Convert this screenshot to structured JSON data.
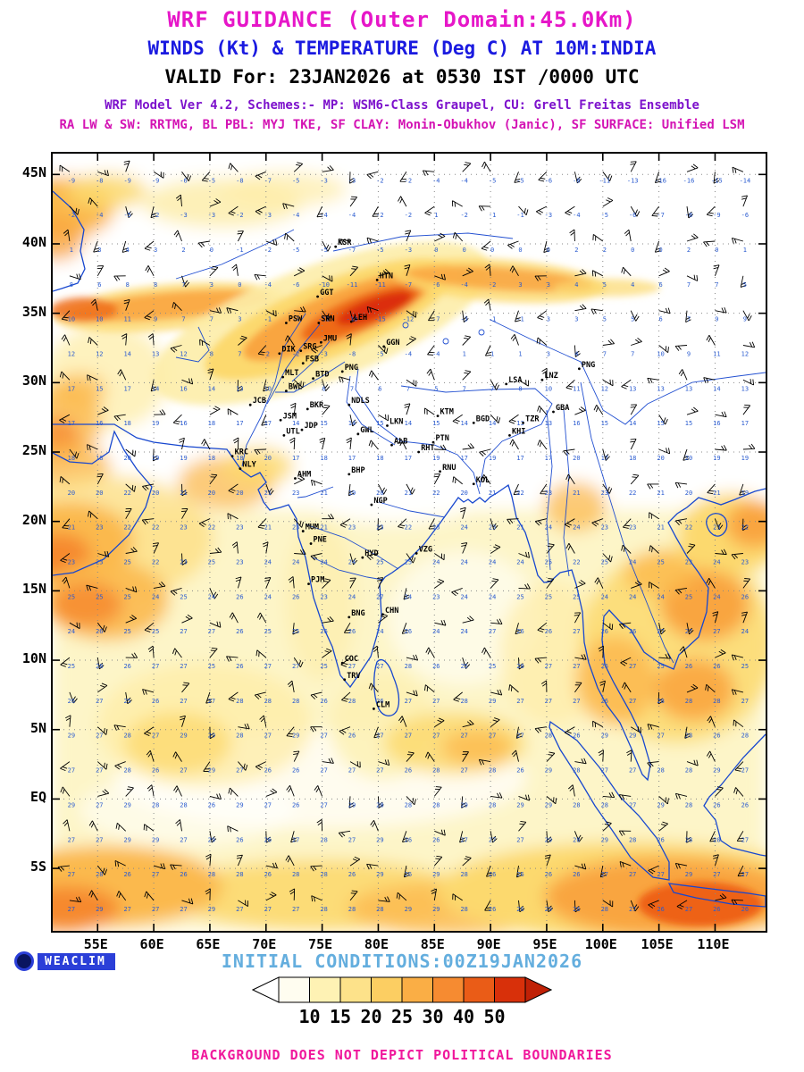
{
  "header": {
    "title1": "WRF GUIDANCE (Outer Domain:45.0Km)",
    "title2": "WINDS (Kt) & TEMPERATURE (Deg C) AT 10M:INDIA",
    "title3": "VALID For: 23JAN2026 at 0530 IST /0000 UTC",
    "scheme_line1": "WRF Model Ver 4.2, Schemes:- MP: WSM6-Class Graupel, CU: Grell Freitas Ensemble",
    "scheme_line2": "RA LW & SW: RRTMG, BL PBL: MYJ TKE, SF CLAY: Monin-Obukhov (Janic), SF SURFACE: Unified LSM"
  },
  "footer": {
    "logo_text": "WEACLIM",
    "initial_conditions": "INITIAL CONDITIONS:00Z19JAN2026",
    "disclaimer": "BACKGROUND DOES NOT DEPICT POLITICAL BOUNDARIES"
  },
  "colors": {
    "title1": "#e616c8",
    "title2": "#1a1ae0",
    "valid_line": "#000000",
    "scheme1": "#7d12cc",
    "scheme2": "#d414b4",
    "coastline": "#1747cf",
    "temp_number": "#2a5bd0",
    "wind_barb": "#000000",
    "grid_dots": "#888888",
    "initial_conditions": "#64aede",
    "disclaimer": "#f0189c",
    "logo_bg": "#2b3fd8"
  },
  "map": {
    "lon_range": [
      51,
      114.5
    ],
    "lat_range": [
      -9.5,
      46.5
    ],
    "lat_ticks": [
      {
        "label": "45N",
        "value": 45
      },
      {
        "label": "40N",
        "value": 40
      },
      {
        "label": "35N",
        "value": 35
      },
      {
        "label": "30N",
        "value": 30
      },
      {
        "label": "25N",
        "value": 25
      },
      {
        "label": "20N",
        "value": 20
      },
      {
        "label": "15N",
        "value": 15
      },
      {
        "label": "10N",
        "value": 10
      },
      {
        "label": "5N",
        "value": 5
      },
      {
        "label": "EQ",
        "value": 0
      },
      {
        "label": "5S",
        "value": -5
      }
    ],
    "lon_ticks": [
      {
        "label": "55E",
        "value": 55
      },
      {
        "label": "60E",
        "value": 60
      },
      {
        "label": "65E",
        "value": 65
      },
      {
        "label": "70E",
        "value": 70
      },
      {
        "label": "75E",
        "value": 75
      },
      {
        "label": "80E",
        "value": 80
      },
      {
        "label": "85E",
        "value": 85
      },
      {
        "label": "90E",
        "value": 90
      },
      {
        "label": "95E",
        "value": 95
      },
      {
        "label": "100E",
        "value": 100
      },
      {
        "label": "105E",
        "value": 105
      },
      {
        "label": "110E",
        "value": 110
      }
    ],
    "wind_grid": {
      "spacing_deg": 2.5,
      "lat_start": 45,
      "lat_end": -7.5,
      "lon_start": 52.5,
      "lon_end": 112.5
    }
  },
  "cities": [
    {
      "label": "KSR",
      "lon": 76.2,
      "lat": 39.8
    },
    {
      "label": "HTN",
      "lon": 79.9,
      "lat": 37.4
    },
    {
      "label": "GGT",
      "lon": 74.6,
      "lat": 36.2
    },
    {
      "label": "PSW",
      "lon": 71.8,
      "lat": 34.3
    },
    {
      "label": "SRN",
      "lon": 74.7,
      "lat": 34.3
    },
    {
      "label": "LEH",
      "lon": 77.6,
      "lat": 34.4
    },
    {
      "label": "JMU",
      "lon": 74.9,
      "lat": 32.9
    },
    {
      "label": "DIK",
      "lon": 71.2,
      "lat": 32.1
    },
    {
      "label": "SRG",
      "lon": 73.1,
      "lat": 32.3
    },
    {
      "label": "FSB",
      "lon": 73.3,
      "lat": 31.4
    },
    {
      "label": "MLT",
      "lon": 71.5,
      "lat": 30.4
    },
    {
      "label": "BWL",
      "lon": 71.8,
      "lat": 29.4
    },
    {
      "label": "BTD",
      "lon": 74.2,
      "lat": 30.3
    },
    {
      "label": "PNG",
      "lon": 76.8,
      "lat": 30.8
    },
    {
      "label": "GGN",
      "lon": 80.5,
      "lat": 32.6
    },
    {
      "label": "PNG",
      "lon": 97.9,
      "lat": 31.0
    },
    {
      "label": "LSA",
      "lon": 91.4,
      "lat": 29.9
    },
    {
      "label": "LNZ",
      "lon": 94.6,
      "lat": 30.2
    },
    {
      "label": "JCB",
      "lon": 68.6,
      "lat": 28.4
    },
    {
      "label": "BKR",
      "lon": 73.7,
      "lat": 28.1
    },
    {
      "label": "NDLS",
      "lon": 77.4,
      "lat": 28.4
    },
    {
      "label": "KTM",
      "lon": 85.3,
      "lat": 27.6
    },
    {
      "label": "BGD",
      "lon": 88.5,
      "lat": 27.1
    },
    {
      "label": "TZR",
      "lon": 92.9,
      "lat": 27.1
    },
    {
      "label": "GBA",
      "lon": 95.6,
      "lat": 27.9
    },
    {
      "label": "KHI",
      "lon": 91.7,
      "lat": 26.2
    },
    {
      "label": "JSM",
      "lon": 71.3,
      "lat": 27.3
    },
    {
      "label": "JDP",
      "lon": 73.2,
      "lat": 26.6
    },
    {
      "label": "UTL",
      "lon": 71.6,
      "lat": 26.2
    },
    {
      "label": "GWL",
      "lon": 78.2,
      "lat": 26.3
    },
    {
      "label": "LKN",
      "lon": 80.8,
      "lat": 26.9
    },
    {
      "label": "ALB",
      "lon": 81.2,
      "lat": 25.5
    },
    {
      "label": "PTN",
      "lon": 84.9,
      "lat": 25.7
    },
    {
      "label": "RHT",
      "lon": 83.6,
      "lat": 25.0
    },
    {
      "label": "KRC",
      "lon": 67.0,
      "lat": 24.7
    },
    {
      "label": "NLY",
      "lon": 67.7,
      "lat": 23.8
    },
    {
      "label": "AHM",
      "lon": 72.6,
      "lat": 23.1
    },
    {
      "label": "BHP",
      "lon": 77.4,
      "lat": 23.4
    },
    {
      "label": "RNU",
      "lon": 85.5,
      "lat": 23.6
    },
    {
      "label": "KOL",
      "lon": 88.5,
      "lat": 22.7
    },
    {
      "label": "NGP",
      "lon": 79.4,
      "lat": 21.2
    },
    {
      "label": "MUM",
      "lon": 73.3,
      "lat": 19.3
    },
    {
      "label": "PNE",
      "lon": 74.0,
      "lat": 18.4
    },
    {
      "label": "HYD",
      "lon": 78.6,
      "lat": 17.4
    },
    {
      "label": "VZG",
      "lon": 83.4,
      "lat": 17.7
    },
    {
      "label": "PJM",
      "lon": 73.8,
      "lat": 15.5
    },
    {
      "label": "BNG",
      "lon": 77.4,
      "lat": 13.1
    },
    {
      "label": "CHN",
      "lon": 80.4,
      "lat": 13.3
    },
    {
      "label": "COC",
      "lon": 76.8,
      "lat": 9.8
    },
    {
      "label": "TRV",
      "lon": 77.0,
      "lat": 8.6
    },
    {
      "label": "CLM",
      "lon": 79.6,
      "lat": 6.5
    }
  ],
  "colorbar": {
    "labels": [
      "10",
      "15",
      "20",
      "25",
      "30",
      "40",
      "50"
    ],
    "segment_colors": [
      "#fffdf0",
      "#fef2b4",
      "#fde28a",
      "#fcce62",
      "#faae45",
      "#f68b31",
      "#ea5c17",
      "#d8300a"
    ],
    "arrow_left_color": "#ffffff",
    "arrow_right_color": "#c02106"
  }
}
